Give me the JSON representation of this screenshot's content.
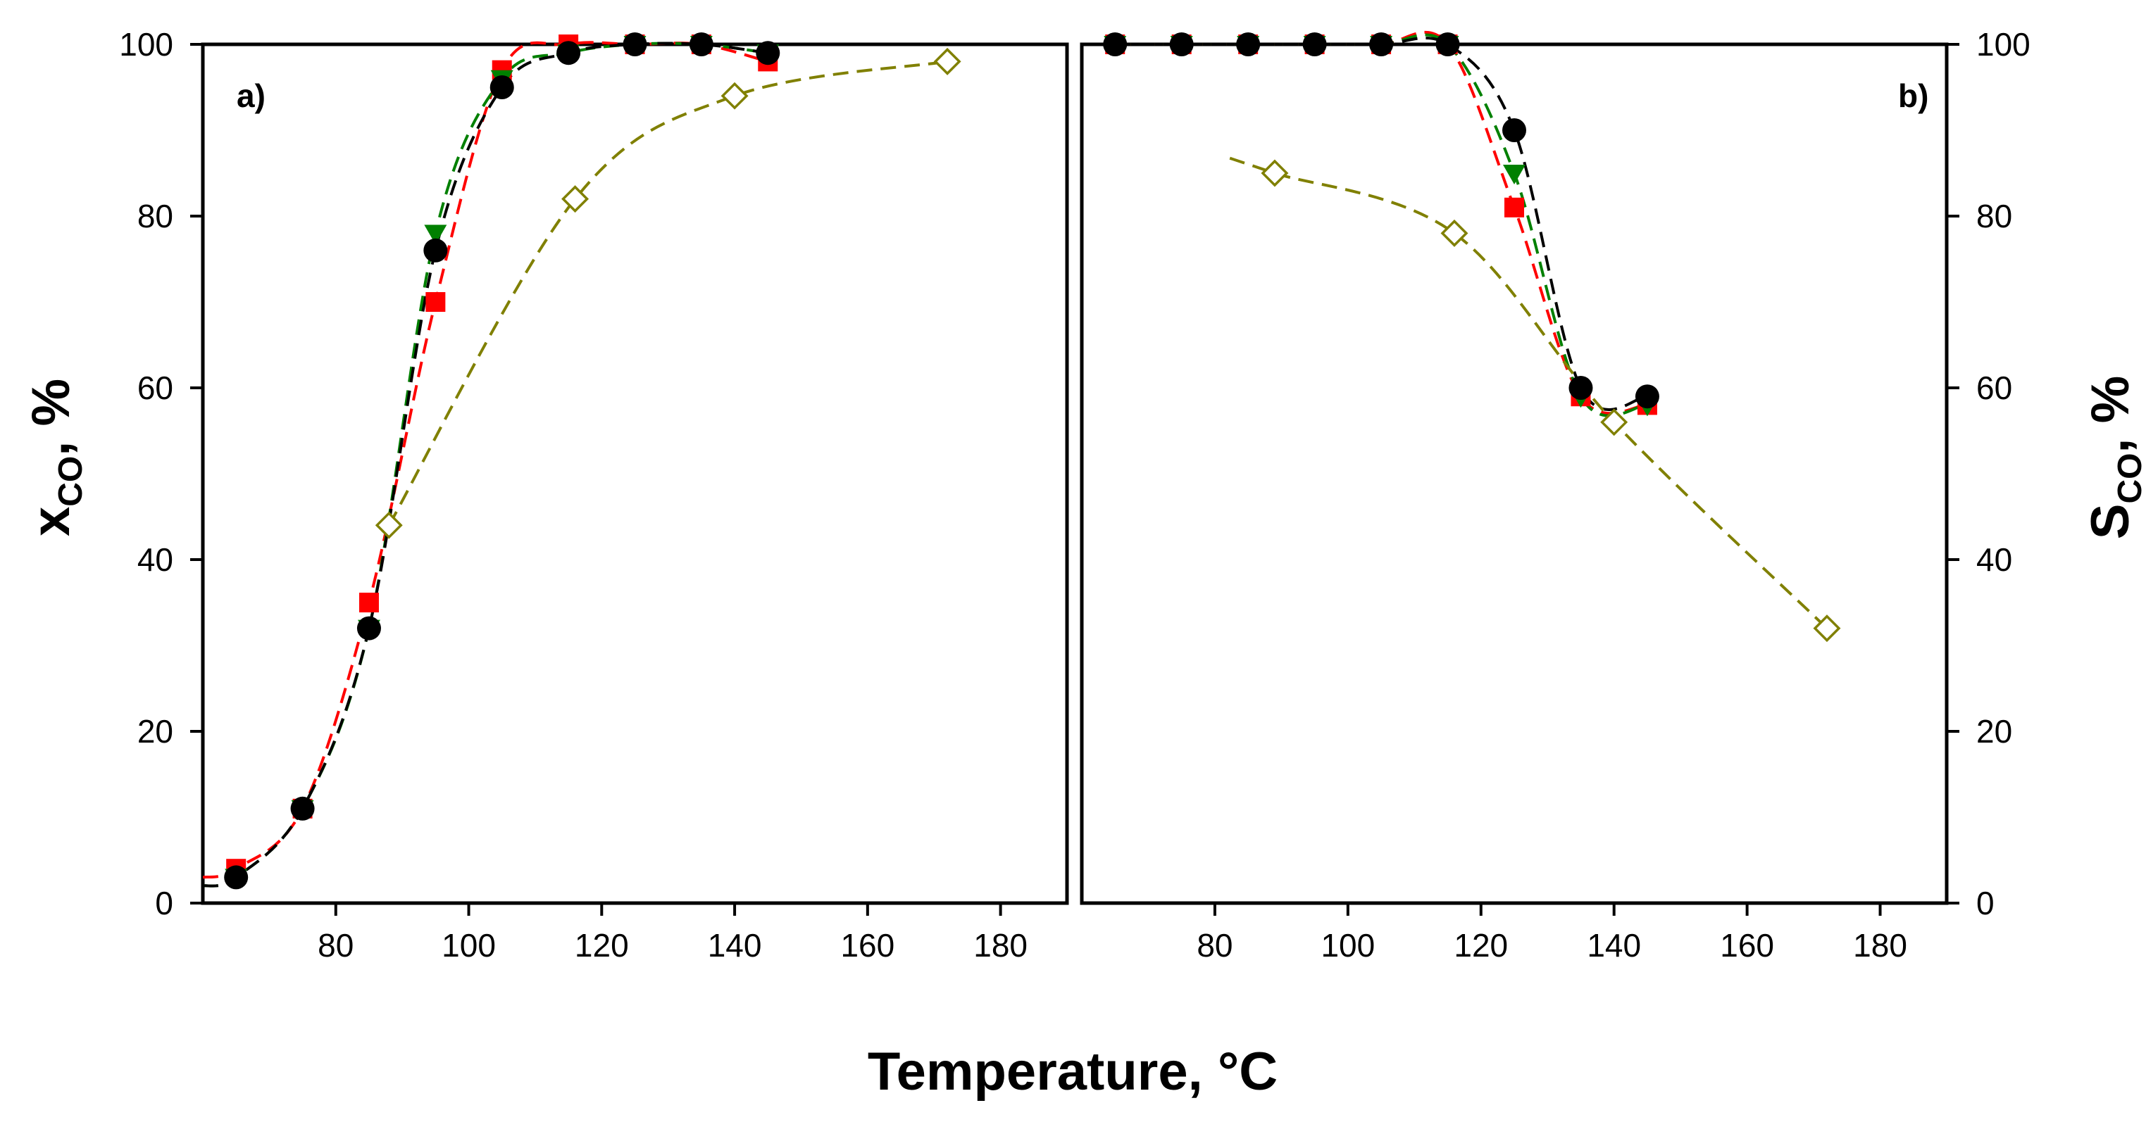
{
  "chart_data": [
    {
      "type": "line",
      "panel_label": "a)",
      "ylabel": {
        "main": "x",
        "sub": "CO",
        "suffix": ", %"
      },
      "xlabel": "Temperature, °C",
      "xlim": [
        60,
        190
      ],
      "ylim": [
        0,
        100
      ],
      "xticks": [
        80,
        100,
        120,
        140,
        160,
        180
      ],
      "yticks": [
        0,
        20,
        40,
        60,
        80,
        100
      ],
      "series": [
        {
          "name": "red squares",
          "color": "#ff0000",
          "marker": "square",
          "filled": true,
          "x": [
            65,
            75,
            85,
            95,
            105,
            115,
            125,
            135,
            145
          ],
          "y": [
            4,
            11,
            35,
            70,
            97,
            100,
            100,
            100,
            98
          ]
        },
        {
          "name": "green triangles",
          "color": "#008000",
          "marker": "triangle-down",
          "filled": true,
          "x": [
            65,
            75,
            85,
            95,
            105,
            115,
            125,
            135,
            145
          ],
          "y": [
            3,
            11,
            32,
            78,
            96,
            99,
            100,
            100,
            99
          ]
        },
        {
          "name": "black circles",
          "color": "#000000",
          "marker": "circle",
          "filled": true,
          "x": [
            65,
            75,
            85,
            95,
            105,
            115,
            125,
            135,
            145
          ],
          "y": [
            3,
            11,
            32,
            76,
            95,
            99,
            100,
            100,
            99
          ]
        },
        {
          "name": "olive open diamonds",
          "color": "#808000",
          "marker": "diamond",
          "filled": false,
          "x": [
            88,
            116,
            140,
            172
          ],
          "y": [
            44,
            82,
            94,
            98
          ]
        }
      ]
    },
    {
      "type": "line",
      "panel_label": "b)",
      "ylabel": {
        "main": "S",
        "sub": "CO",
        "suffix": ", %"
      },
      "xlabel": "Temperature, °C",
      "xlim": [
        60,
        190
      ],
      "ylim": [
        0,
        100
      ],
      "xticks": [
        80,
        100,
        120,
        140,
        160,
        180
      ],
      "yticks": [
        0,
        20,
        40,
        60,
        80,
        100
      ],
      "series": [
        {
          "name": "red squares",
          "color": "#ff0000",
          "marker": "square",
          "filled": true,
          "x": [
            65,
            75,
            85,
            95,
            105,
            115,
            125,
            135,
            145
          ],
          "y": [
            100,
            100,
            100,
            100,
            100,
            100,
            81,
            59,
            58
          ]
        },
        {
          "name": "green triangles",
          "color": "#008000",
          "marker": "triangle-down",
          "filled": true,
          "x": [
            65,
            75,
            85,
            95,
            105,
            115,
            125,
            135,
            145
          ],
          "y": [
            100,
            100,
            100,
            100,
            100,
            100,
            85,
            59,
            58
          ]
        },
        {
          "name": "black circles",
          "color": "#000000",
          "marker": "circle",
          "filled": true,
          "x": [
            65,
            75,
            85,
            95,
            105,
            115,
            125,
            135,
            145
          ],
          "y": [
            100,
            100,
            100,
            100,
            100,
            100,
            90,
            60,
            59
          ]
        },
        {
          "name": "olive open diamonds",
          "color": "#808000",
          "marker": "diamond",
          "filled": false,
          "x": [
            89,
            116,
            140,
            172
          ],
          "y": [
            85,
            78,
            56,
            32
          ]
        }
      ]
    }
  ]
}
